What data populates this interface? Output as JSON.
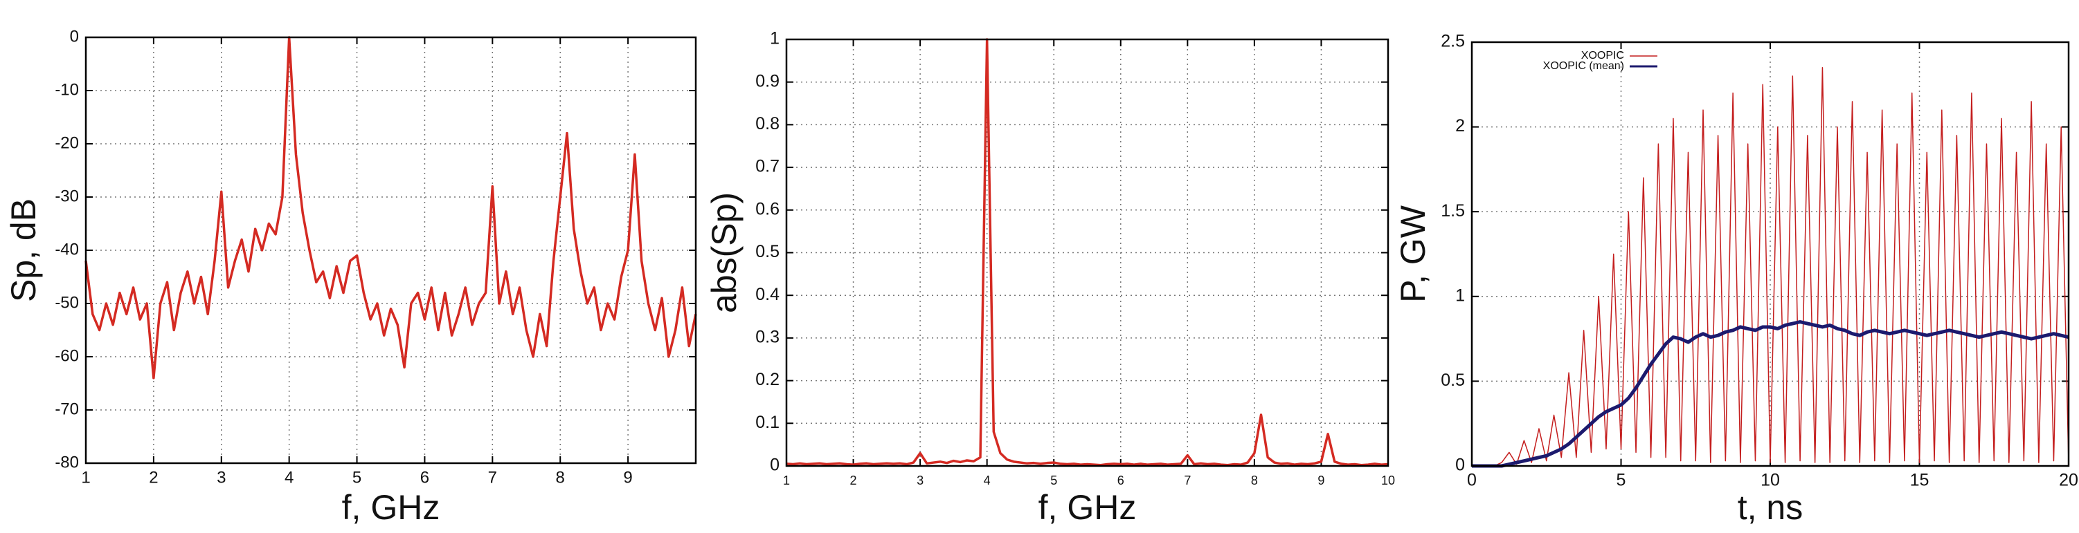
{
  "chart_data": [
    {
      "type": "line",
      "xlabel": "f, GHz",
      "ylabel": "Sp, dB",
      "color": "#d42a22",
      "grid": true,
      "xlim": [
        1,
        10
      ],
      "xticks": [
        1,
        2,
        3,
        4,
        5,
        6,
        7,
        8,
        9
      ],
      "ylim": [
        -80,
        0
      ],
      "yticks": [
        0,
        -10,
        -20,
        -30,
        -40,
        -50,
        -60,
        -70,
        -80
      ],
      "x": [
        1,
        1.1,
        1.2,
        1.3,
        1.4,
        1.5,
        1.6,
        1.7,
        1.8,
        1.9,
        2,
        2.1,
        2.2,
        2.3,
        2.4,
        2.5,
        2.6,
        2.7,
        2.8,
        2.9,
        3,
        3.1,
        3.2,
        3.3,
        3.4,
        3.5,
        3.6,
        3.7,
        3.8,
        3.9,
        4,
        4.1,
        4.2,
        4.3,
        4.4,
        4.5,
        4.6,
        4.7,
        4.8,
        4.9,
        5,
        5.1,
        5.2,
        5.3,
        5.4,
        5.5,
        5.6,
        5.7,
        5.8,
        5.9,
        6,
        6.1,
        6.2,
        6.3,
        6.4,
        6.5,
        6.6,
        6.7,
        6.8,
        6.9,
        7,
        7.1,
        7.2,
        7.3,
        7.4,
        7.5,
        7.6,
        7.7,
        7.8,
        7.9,
        8,
        8.1,
        8.2,
        8.3,
        8.4,
        8.5,
        8.6,
        8.7,
        8.8,
        8.9,
        9,
        9.1,
        9.2,
        9.3,
        9.4,
        9.5,
        9.6,
        9.7,
        9.8,
        9.9,
        10
      ],
      "values": [
        -42,
        -52,
        -55,
        -50,
        -54,
        -48,
        -52,
        -47,
        -53,
        -50,
        -64,
        -50,
        -46,
        -55,
        -48,
        -44,
        -50,
        -45,
        -52,
        -42,
        -29,
        -47,
        -42,
        -38,
        -44,
        -36,
        -40,
        -35,
        -37,
        -30,
        0,
        -22,
        -33,
        -40,
        -46,
        -44,
        -49,
        -43,
        -48,
        -42,
        -41,
        -48,
        -53,
        -50,
        -56,
        -51,
        -54,
        -62,
        -50,
        -48,
        -53,
        -47,
        -55,
        -48,
        -56,
        -52,
        -47,
        -54,
        -50,
        -48,
        -28,
        -50,
        -44,
        -52,
        -47,
        -55,
        -60,
        -52,
        -58,
        -42,
        -30,
        -18,
        -36,
        -44,
        -50,
        -47,
        -55,
        -50,
        -53,
        -45,
        -40,
        -22,
        -42,
        -50,
        -55,
        -49,
        -60,
        -55,
        -47,
        -58,
        -52
      ]
    },
    {
      "type": "line",
      "xlabel": "f, GHz",
      "ylabel": "abs(Sp)",
      "color": "#d42a22",
      "grid": true,
      "xlim": [
        1,
        10
      ],
      "xticks": [
        1,
        2,
        3,
        4,
        5,
        6,
        7,
        8,
        9,
        10
      ],
      "ylim": [
        0,
        1
      ],
      "yticks": [
        0,
        0.1,
        0.2,
        0.3,
        0.4,
        0.5,
        0.6,
        0.7,
        0.8,
        0.9,
        1
      ],
      "x": [
        1,
        1.1,
        1.2,
        1.3,
        1.4,
        1.5,
        1.6,
        1.7,
        1.8,
        1.9,
        2,
        2.1,
        2.2,
        2.3,
        2.4,
        2.5,
        2.6,
        2.7,
        2.8,
        2.9,
        3,
        3.1,
        3.2,
        3.3,
        3.4,
        3.5,
        3.6,
        3.7,
        3.8,
        3.9,
        4,
        4.1,
        4.2,
        4.3,
        4.4,
        4.5,
        4.6,
        4.7,
        4.8,
        4.9,
        5,
        5.1,
        5.2,
        5.3,
        5.4,
        5.5,
        5.6,
        5.7,
        5.8,
        5.9,
        6,
        6.1,
        6.2,
        6.3,
        6.4,
        6.5,
        6.6,
        6.7,
        6.8,
        6.9,
        7,
        7.1,
        7.2,
        7.3,
        7.4,
        7.5,
        7.6,
        7.7,
        7.8,
        7.9,
        8,
        8.1,
        8.2,
        8.3,
        8.4,
        8.5,
        8.6,
        8.7,
        8.8,
        8.9,
        9,
        9.1,
        9.2,
        9.3,
        9.4,
        9.5,
        9.6,
        9.7,
        9.8,
        9.9,
        10
      ],
      "values": [
        0.005,
        0.004,
        0.006,
        0.004,
        0.005,
        0.006,
        0.004,
        0.005,
        0.006,
        0.004,
        0.003,
        0.005,
        0.006,
        0.004,
        0.005,
        0.006,
        0.005,
        0.006,
        0.004,
        0.008,
        0.03,
        0.006,
        0.008,
        0.01,
        0.007,
        0.012,
        0.009,
        0.013,
        0.011,
        0.02,
        1,
        0.08,
        0.03,
        0.015,
        0.01,
        0.008,
        0.006,
        0.007,
        0.005,
        0.007,
        0.008,
        0.005,
        0.004,
        0.005,
        0.003,
        0.004,
        0.003,
        0.002,
        0.004,
        0.005,
        0.004,
        0.005,
        0.003,
        0.005,
        0.003,
        0.004,
        0.005,
        0.003,
        0.004,
        0.005,
        0.025,
        0.004,
        0.006,
        0.004,
        0.005,
        0.003,
        0.002,
        0.004,
        0.003,
        0.008,
        0.03,
        0.12,
        0.02,
        0.008,
        0.005,
        0.006,
        0.003,
        0.005,
        0.004,
        0.006,
        0.01,
        0.075,
        0.01,
        0.005,
        0.003,
        0.004,
        0.002,
        0.003,
        0.005,
        0.003,
        0.004
      ]
    },
    {
      "type": "line",
      "xlabel": "t, ns",
      "ylabel": "P, GW",
      "grid": true,
      "legend": "upper left",
      "xlim": [
        0,
        20
      ],
      "xticks": [
        0,
        5,
        10,
        15,
        20
      ],
      "ylim": [
        0,
        2.5
      ],
      "yticks": [
        0,
        0.5,
        1,
        1.5,
        2,
        2.5
      ],
      "x": [
        0,
        0.25,
        0.5,
        0.75,
        1,
        1.25,
        1.5,
        1.75,
        2,
        2.25,
        2.5,
        2.75,
        3,
        3.25,
        3.5,
        3.75,
        4,
        4.25,
        4.5,
        4.75,
        5,
        5.25,
        5.5,
        5.75,
        6,
        6.25,
        6.5,
        6.75,
        7,
        7.25,
        7.5,
        7.75,
        8,
        8.25,
        8.5,
        8.75,
        9,
        9.25,
        9.5,
        9.75,
        10,
        10.25,
        10.5,
        10.75,
        11,
        11.25,
        11.5,
        11.75,
        12,
        12.25,
        12.5,
        12.75,
        13,
        13.25,
        13.5,
        13.75,
        14,
        14.25,
        14.5,
        14.75,
        15,
        15.25,
        15.5,
        15.75,
        16,
        16.25,
        16.5,
        16.75,
        17,
        17.25,
        17.5,
        17.75,
        18,
        18.25,
        18.5,
        18.75,
        19,
        19.25,
        19.5,
        19.75,
        20
      ],
      "series": [
        {
          "name": "XOOPIC",
          "color": "#c41e1e",
          "width": 1.5,
          "values": [
            0,
            0,
            0,
            0,
            0.02,
            0.08,
            0.01,
            0.15,
            0.02,
            0.22,
            0.03,
            0.3,
            0.05,
            0.55,
            0.05,
            0.8,
            0.08,
            1,
            0.1,
            1.25,
            0.1,
            1.5,
            0.08,
            1.7,
            0.05,
            1.9,
            0.05,
            2.05,
            0.03,
            1.85,
            0.03,
            2.1,
            0.02,
            1.95,
            0.03,
            2.2,
            0.02,
            1.9,
            0.03,
            2.25,
            0.02,
            2,
            0.02,
            2.3,
            0.03,
            1.95,
            0.02,
            2.35,
            0.02,
            2,
            0.03,
            2.15,
            0.02,
            1.85,
            0.03,
            2.1,
            0.02,
            1.9,
            0.03,
            2.2,
            0.02,
            1.85,
            0.03,
            2.1,
            0.02,
            1.95,
            0.03,
            2.2,
            0.02,
            1.9,
            0.03,
            2.05,
            0.02,
            1.85,
            0.03,
            2.15,
            0.02,
            1.9,
            0.03,
            2,
            0.02
          ]
        },
        {
          "name": "XOOPIC (mean)",
          "color": "#1c1a6e",
          "width": 5,
          "values": [
            0,
            0,
            0,
            0,
            0,
            0.01,
            0.02,
            0.03,
            0.04,
            0.05,
            0.06,
            0.08,
            0.1,
            0.13,
            0.17,
            0.21,
            0.25,
            0.29,
            0.32,
            0.34,
            0.36,
            0.4,
            0.46,
            0.53,
            0.6,
            0.66,
            0.72,
            0.76,
            0.75,
            0.73,
            0.76,
            0.78,
            0.76,
            0.77,
            0.79,
            0.8,
            0.82,
            0.81,
            0.8,
            0.82,
            0.82,
            0.81,
            0.83,
            0.84,
            0.85,
            0.84,
            0.83,
            0.82,
            0.83,
            0.81,
            0.8,
            0.78,
            0.77,
            0.79,
            0.8,
            0.79,
            0.78,
            0.79,
            0.8,
            0.79,
            0.78,
            0.77,
            0.78,
            0.79,
            0.8,
            0.79,
            0.78,
            0.77,
            0.76,
            0.77,
            0.78,
            0.79,
            0.78,
            0.77,
            0.76,
            0.75,
            0.76,
            0.77,
            0.78,
            0.77,
            0.76
          ]
        }
      ]
    }
  ]
}
